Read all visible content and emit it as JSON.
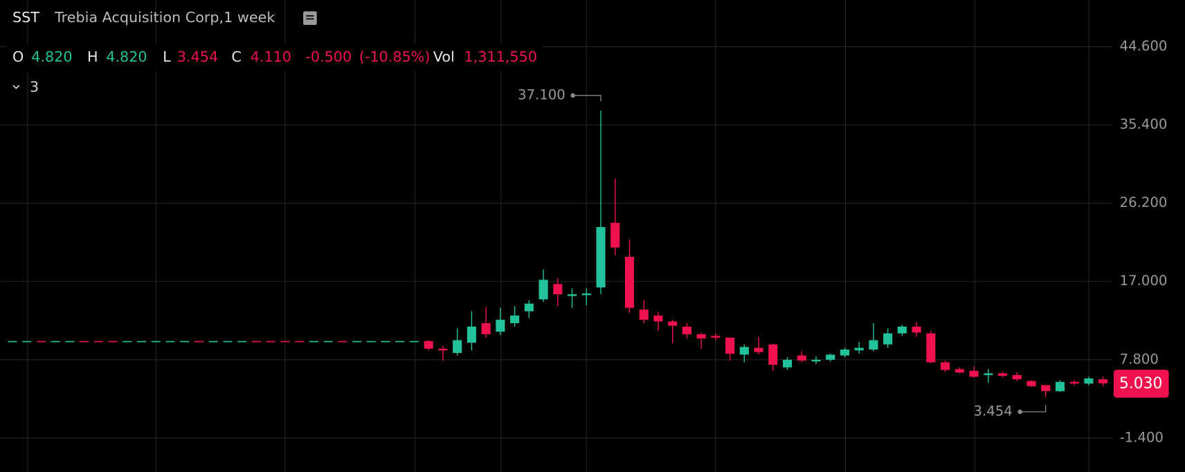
{
  "header": {
    "symbol": "SST",
    "name": "Trebia Acquisition Corp,1 week",
    "open_label": "O",
    "open": "4.820",
    "high_label": "H",
    "high": "4.820",
    "low_label": "L",
    "low": "3.454",
    "close_label": "C",
    "close": "4.110",
    "change": "-0.500",
    "change_pct": "(-10.85%)",
    "volume_label": "Vol",
    "volume": "1,311,550",
    "indicators_count": "3"
  },
  "chart_data": {
    "type": "candlestick",
    "up_color": "#22c39a",
    "down_color": "#f0124f",
    "ylim": [
      -5.4,
      50.1
    ],
    "yticks": [
      {
        "value": 44.6,
        "label": "44.600"
      },
      {
        "value": 35.4,
        "label": "35.400"
      },
      {
        "value": 26.2,
        "label": "26.200"
      },
      {
        "value": 17,
        "label": "17.000"
      },
      {
        "value": 7.8,
        "label": "7.800"
      },
      {
        "value": -1.4,
        "label": "-1.400"
      }
    ],
    "grid": true,
    "open": [
      9.9,
      9.9,
      10.0,
      9.9,
      9.9,
      10.0,
      10.0,
      10.0,
      9.9,
      9.9,
      9.9,
      9.9,
      9.9,
      10.0,
      9.9,
      9.9,
      9.9,
      10.0,
      10.0,
      10.0,
      10.0,
      9.9,
      9.9,
      10.0,
      9.9,
      9.9,
      9.9,
      9.9,
      9.9,
      10.0,
      9.1,
      8.6,
      9.8,
      12.1,
      11.1,
      12.1,
      13.5,
      14.9,
      16.7,
      15.3,
      15.4,
      16.3,
      23.9,
      19.9,
      13.7,
      13.0,
      12.3,
      11.7,
      10.8,
      10.6,
      10.4,
      8.4,
      9.2,
      9.6,
      6.9,
      8.3,
      7.6,
      7.8,
      8.3,
      8.9,
      9.0,
      9.6,
      10.9,
      11.7,
      10.9,
      7.5,
      6.7,
      6.5,
      6.0,
      6.2,
      6.0,
      5.3,
      4.82,
      4.1,
      5.2,
      5.0,
      5.5
    ],
    "high": [
      10.0,
      10.0,
      10.0,
      10.0,
      10.0,
      10.0,
      10.0,
      10.0,
      10.0,
      10.0,
      10.0,
      10.0,
      10.0,
      10.0,
      10.0,
      10.0,
      10.0,
      10.0,
      10.0,
      10.0,
      10.0,
      10.0,
      10.0,
      10.0,
      10.0,
      10.0,
      10.0,
      10.0,
      10.0,
      10.1,
      9.4,
      11.5,
      13.5,
      14.0,
      13.9,
      14.1,
      14.8,
      18.4,
      17.4,
      16.2,
      16.2,
      37.1,
      29.1,
      21.9,
      14.8,
      13.4,
      12.5,
      12.1,
      11.0,
      10.9,
      10.4,
      9.6,
      10.5,
      9.7,
      8.1,
      8.8,
      8.2,
      8.5,
      9.2,
      9.9,
      12.1,
      11.5,
      11.9,
      12.2,
      11.2,
      7.7,
      6.9,
      7.0,
      6.7,
      6.4,
      6.3,
      5.4,
      4.82,
      5.4,
      5.4,
      5.8,
      5.8
    ],
    "low": [
      9.9,
      9.9,
      9.9,
      9.9,
      9.9,
      9.9,
      9.9,
      9.9,
      9.9,
      9.9,
      9.9,
      9.9,
      9.9,
      9.9,
      9.9,
      9.9,
      9.9,
      9.9,
      9.9,
      9.9,
      9.9,
      9.9,
      9.9,
      9.9,
      9.9,
      9.9,
      9.9,
      9.9,
      9.9,
      8.9,
      7.7,
      8.3,
      8.9,
      10.4,
      10.7,
      11.7,
      12.7,
      14.6,
      14.1,
      13.9,
      14.2,
      15.5,
      20.1,
      13.3,
      12.1,
      11.2,
      9.7,
      10.3,
      9.1,
      10.1,
      7.7,
      7.5,
      8.4,
      6.5,
      6.6,
      7.5,
      7.3,
      7.6,
      8.1,
      8.5,
      8.8,
      9.2,
      10.6,
      10.5,
      7.4,
      6.4,
      6.2,
      5.7,
      5.1,
      5.7,
      5.3,
      4.6,
      3.454,
      4.0,
      4.8,
      4.8,
      4.7
    ],
    "close": [
      10.0,
      10.0,
      9.9,
      10.0,
      10.0,
      9.9,
      9.9,
      9.9,
      10.0,
      10.0,
      10.0,
      10.0,
      10.0,
      9.9,
      10.0,
      10.0,
      10.0,
      9.9,
      9.9,
      9.9,
      9.9,
      10.0,
      10.0,
      9.9,
      10.0,
      10.0,
      10.0,
      10.0,
      10.0,
      9.1,
      8.9,
      10.1,
      11.7,
      10.8,
      12.5,
      13.0,
      14.4,
      17.2,
      15.5,
      15.5,
      15.6,
      23.4,
      21.0,
      13.9,
      12.5,
      12.3,
      11.8,
      10.8,
      10.3,
      10.4,
      8.5,
      9.3,
      8.7,
      7.2,
      7.8,
      7.7,
      7.8,
      8.4,
      9.0,
      9.2,
      10.1,
      10.9,
      11.7,
      11.0,
      7.5,
      6.6,
      6.3,
      5.8,
      6.2,
      5.9,
      5.5,
      4.7,
      4.11,
      5.2,
      5.0,
      5.6,
      5.03
    ],
    "high_marker": {
      "value": 37.1,
      "label": "37.100"
    },
    "low_marker": {
      "value": 3.454,
      "label": "3.454"
    },
    "last_price": {
      "value": 5.03,
      "label": "5.030"
    }
  }
}
